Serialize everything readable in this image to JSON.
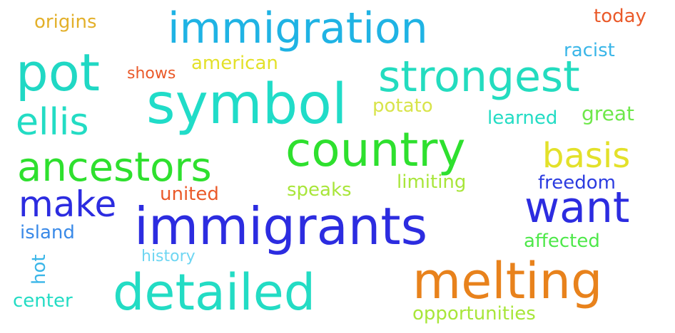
{
  "words": [
    {
      "text": "immigration",
      "color": "#1fb3e4"
    },
    {
      "text": "symbol",
      "color": "#20dcc8"
    },
    {
      "text": "pot",
      "color": "#20d8c4"
    },
    {
      "text": "strongest",
      "color": "#23dcbf"
    },
    {
      "text": "country",
      "color": "#2ee02e"
    },
    {
      "text": "ancestors",
      "color": "#2ee02e"
    },
    {
      "text": "immigrants",
      "color": "#2c2ce0"
    },
    {
      "text": "melting",
      "color": "#e8821c"
    },
    {
      "text": "detailed",
      "color": "#23dcc4"
    },
    {
      "text": "want",
      "color": "#2c2ce0"
    },
    {
      "text": "basis",
      "color": "#e3e12a"
    },
    {
      "text": "ellis",
      "color": "#23dcc4"
    },
    {
      "text": "make",
      "color": "#2c2ce0"
    },
    {
      "text": "origins",
      "color": "#e3b02a"
    },
    {
      "text": "today",
      "color": "#ea5a2a"
    },
    {
      "text": "racist",
      "color": "#3ab6e8"
    },
    {
      "text": "shows",
      "color": "#ea5a2a"
    },
    {
      "text": "american",
      "color": "#e3e12a"
    },
    {
      "text": "potato",
      "color": "#d8e44a"
    },
    {
      "text": "learned",
      "color": "#23dcc4"
    },
    {
      "text": "great",
      "color": "#6ee84a"
    },
    {
      "text": "limiting",
      "color": "#a8e63a"
    },
    {
      "text": "speaks",
      "color": "#a8e63a"
    },
    {
      "text": "united",
      "color": "#ea5a2a"
    },
    {
      "text": "freedom",
      "color": "#2c3ce0"
    },
    {
      "text": "island",
      "color": "#3a8ae8"
    },
    {
      "text": "affected",
      "color": "#4ee84a"
    },
    {
      "text": "hot",
      "color": "#3ab6e8"
    },
    {
      "text": "history",
      "color": "#6ed6f2"
    },
    {
      "text": "center",
      "color": "#23dcc4"
    },
    {
      "text": "opportunities",
      "color": "#a8e63a"
    }
  ]
}
